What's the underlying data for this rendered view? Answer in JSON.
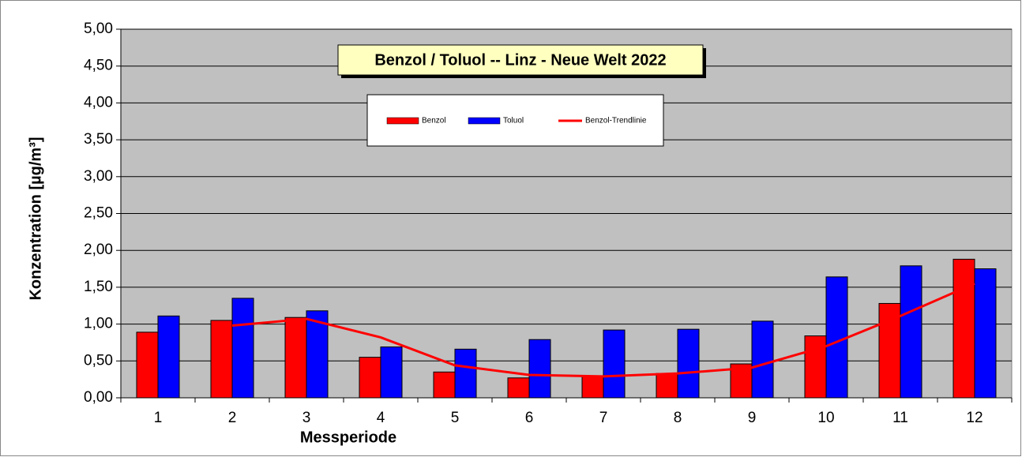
{
  "chart_data": {
    "type": "bar",
    "title": "Benzol / Toluol -- Linz - Neue Welt 2022",
    "x_label": "Messperiode",
    "y_label": "Konzentration [µg/m³]",
    "categories": [
      "1",
      "2",
      "3",
      "4",
      "5",
      "6",
      "7",
      "8",
      "9",
      "10",
      "11",
      "12"
    ],
    "series": [
      {
        "name": "Benzol",
        "color": "#ff0000",
        "values": [
          0.89,
          1.05,
          1.09,
          0.55,
          0.35,
          0.27,
          0.29,
          0.33,
          0.46,
          0.84,
          1.28,
          1.88
        ]
      },
      {
        "name": "Toluol",
        "color": "#0000ff",
        "values": [
          1.11,
          1.35,
          1.18,
          0.69,
          0.66,
          0.79,
          0.92,
          0.93,
          1.04,
          1.64,
          1.79,
          1.75
        ]
      },
      {
        "name": "Benzol-Trendlinie",
        "type": "line",
        "color": "#ff0000",
        "values": [
          null,
          0.98,
          1.07,
          0.82,
          0.44,
          0.31,
          0.29,
          0.33,
          0.41,
          0.7,
          1.11,
          1.55
        ]
      }
    ],
    "ylim": [
      0,
      5
    ],
    "yticks": [
      {
        "value": 0,
        "label": "0,00"
      },
      {
        "value": 0.5,
        "label": "0,50"
      },
      {
        "value": 1,
        "label": "1,00"
      },
      {
        "value": 1.5,
        "label": "1,50"
      },
      {
        "value": 2,
        "label": "2,00"
      },
      {
        "value": 2.5,
        "label": "2,50"
      },
      {
        "value": 3,
        "label": "3,00"
      },
      {
        "value": 3.5,
        "label": "3,50"
      },
      {
        "value": 4,
        "label": "4,00"
      },
      {
        "value": 4.5,
        "label": "4,50"
      },
      {
        "value": 5,
        "label": "5,00"
      }
    ],
    "grid": true
  }
}
